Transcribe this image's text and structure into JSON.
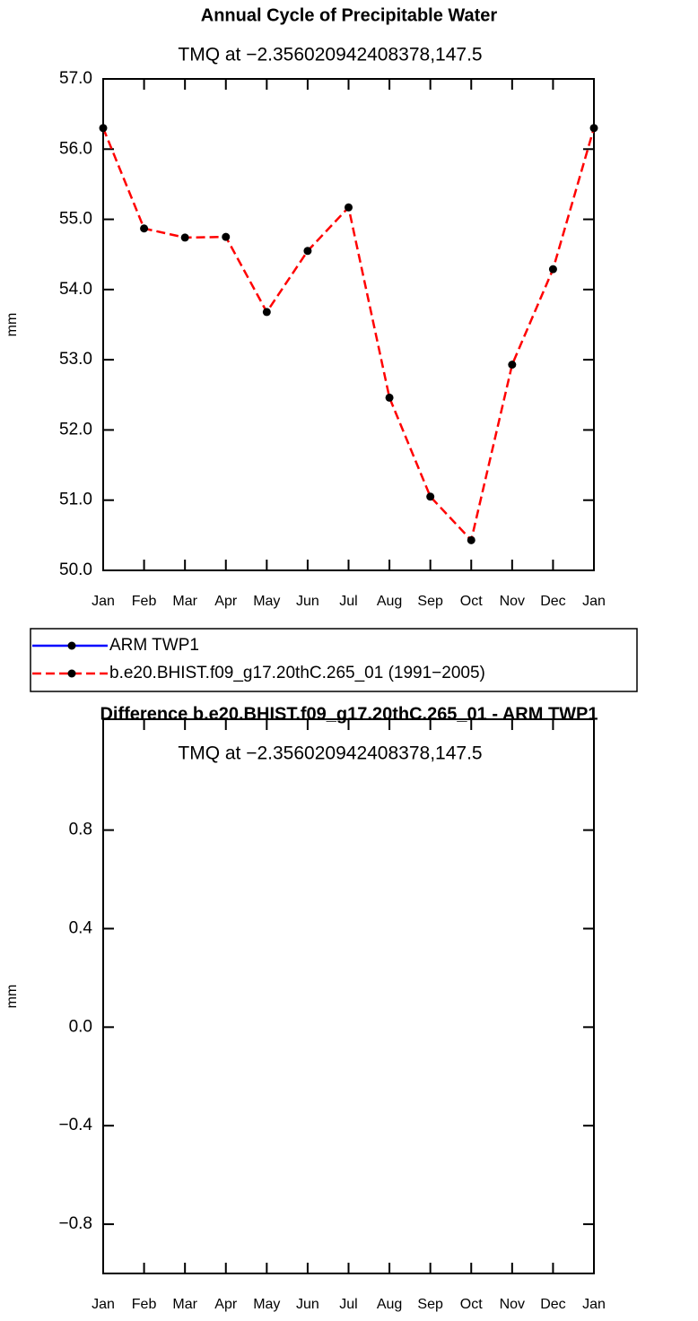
{
  "chart_data": [
    {
      "type": "line",
      "title": "Annual Cycle of Precipitable Water",
      "subtitle": "TMQ at −2.356020942408378,147.5",
      "ylabel": "mm",
      "categories": [
        "Jan",
        "Feb",
        "Mar",
        "Apr",
        "May",
        "Jun",
        "Jul",
        "Aug",
        "Sep",
        "Oct",
        "Nov",
        "Dec",
        "Jan"
      ],
      "series": [
        {
          "name": "ARM TWP1",
          "color": "#0000ff",
          "line_style": "solid",
          "marker": true,
          "values": [
            null,
            null,
            null,
            null,
            null,
            null,
            null,
            null,
            null,
            null,
            null,
            null,
            null
          ]
        },
        {
          "name": "b.e20.BHIST.f09_g17.20thC.265_01 (1991−2005)",
          "color": "#ff0000",
          "line_style": "dashed",
          "marker": true,
          "values": [
            56.3,
            54.87,
            54.74,
            54.75,
            53.68,
            54.55,
            55.17,
            52.46,
            51.05,
            50.43,
            52.93,
            54.29,
            56.3
          ]
        }
      ],
      "ylim": [
        50,
        57
      ],
      "yticks": [
        {
          "value": 50,
          "label": "50.0"
        },
        {
          "value": 51,
          "label": "51.0"
        },
        {
          "value": 52,
          "label": "52.0"
        },
        {
          "value": 53,
          "label": "53.0"
        },
        {
          "value": 54,
          "label": "54.0"
        },
        {
          "value": 55,
          "label": "55.0"
        },
        {
          "value": 56,
          "label": "56.0"
        },
        {
          "value": 57,
          "label": "57.0"
        }
      ],
      "legend": "below"
    },
    {
      "type": "line",
      "title": "Difference b.e20.BHIST.f09_g17.20thC.265_01 - ARM TWP1",
      "subtitle": "TMQ at −2.356020942408378,147.5",
      "ylabel": "mm",
      "categories": [
        "Jan",
        "Feb",
        "Mar",
        "Apr",
        "May",
        "Jun",
        "Jul",
        "Aug",
        "Sep",
        "Oct",
        "Nov",
        "Dec",
        "Jan"
      ],
      "values": [
        null,
        null,
        null,
        null,
        null,
        null,
        null,
        null,
        null,
        null,
        null,
        null,
        null
      ],
      "ylim": [
        -1.0,
        1.25
      ],
      "yticks": [
        {
          "value": -0.8,
          "label": "−0.8"
        },
        {
          "value": -0.4,
          "label": "−0.4"
        },
        {
          "value": 0,
          "label": "0.0"
        },
        {
          "value": 0.4,
          "label": "0.4"
        },
        {
          "value": 0.8,
          "label": "0.8"
        }
      ]
    }
  ]
}
